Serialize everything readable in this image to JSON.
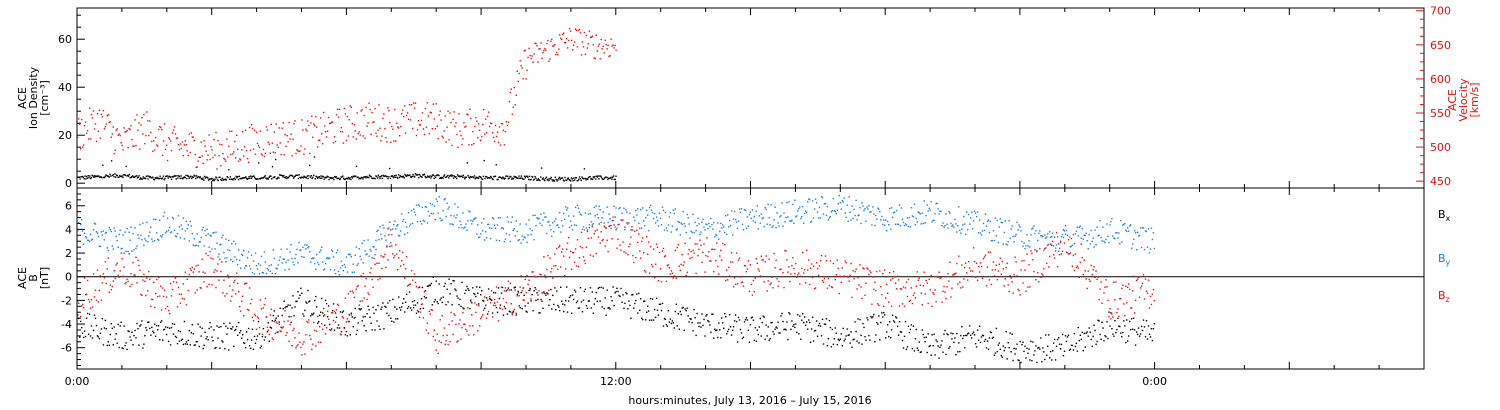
{
  "footer": {
    "xlabel": "hours:minutes, July 13, 2016 – July 15, 2016"
  },
  "colors": {
    "black": "#000000",
    "blue": "#1f7fd0",
    "red": "#e01010",
    "axis": "#000000"
  },
  "chart_data": [
    {
      "type": "scatter",
      "panel": "top",
      "title": "",
      "x_range_hours": [
        0,
        30
      ],
      "x_tick_labels": [
        {
          "hour": 0,
          "label": "0:00"
        },
        {
          "hour": 12,
          "label": "12:00"
        },
        {
          "hour": 24,
          "label": "0:00"
        }
      ],
      "left_axis": {
        "label_lines": [
          "ACE",
          "Ion Density",
          "[cm⁻³]"
        ],
        "ylim": [
          -2,
          73
        ],
        "ticks": [
          0,
          20,
          40,
          60
        ],
        "color": "#000000"
      },
      "right_axis": {
        "label_lines": [
          "ACE",
          "Velocity",
          "[km/s]"
        ],
        "ylim": [
          440,
          704
        ],
        "ticks": [
          450,
          500,
          550,
          600,
          650,
          700
        ],
        "color": "#e01010"
      },
      "series": [
        {
          "axis": "left",
          "color": "#000000",
          "x": [
            0,
            0.5,
            1,
            1.5,
            2,
            2.5,
            3,
            3.5,
            4,
            4.5,
            5,
            5.5,
            6,
            6.5,
            7,
            7.5,
            8,
            8.5,
            9,
            9.5,
            10,
            10.5,
            11,
            11.5,
            12
          ],
          "y": [
            2.5,
            3,
            3.5,
            2.5,
            2.5,
            3,
            2,
            2.5,
            2.5,
            3,
            3,
            2.5,
            2.5,
            3,
            3,
            3.5,
            3,
            3,
            2.5,
            2.5,
            2.5,
            2,
            2,
            2.5,
            2.5
          ]
        },
        {
          "axis": "right",
          "color": "#e01010",
          "x": [
            0,
            0.5,
            1,
            1.5,
            2,
            2.5,
            3,
            3.5,
            4,
            4.5,
            5,
            5.5,
            6,
            6.5,
            7,
            7.5,
            8,
            8.5,
            9,
            9.5,
            10,
            10.5,
            11,
            11.5,
            12
          ],
          "y": [
            520,
            540,
            505,
            530,
            505,
            500,
            495,
            500,
            510,
            515,
            515,
            525,
            535,
            540,
            535,
            540,
            540,
            525,
            535,
            530,
            630,
            645,
            660,
            650,
            650
          ]
        }
      ]
    },
    {
      "type": "scatter",
      "panel": "bottom",
      "title": "",
      "x_range_hours": [
        0,
        30
      ],
      "left_axis": {
        "label_lines": [
          "ACE",
          "B",
          "[nT]"
        ],
        "ylim": [
          -7.8,
          7.5
        ],
        "ticks": [
          -6,
          -4,
          -2,
          0,
          2,
          4,
          6
        ]
      },
      "zero_line": true,
      "series": [
        {
          "name": "Bx",
          "color": "#000000",
          "x": [
            0,
            1,
            2,
            3,
            4,
            5,
            6,
            7,
            8,
            9,
            10,
            11,
            12,
            13,
            14,
            15,
            16,
            17,
            18,
            19,
            20,
            21,
            22,
            23,
            24
          ],
          "y": [
            -4,
            -5,
            -4.5,
            -5,
            -5,
            -2,
            -4,
            -3,
            -1,
            -2,
            -2,
            -2,
            -2,
            -3,
            -4,
            -4.5,
            -4,
            -5,
            -4,
            -6,
            -5,
            -6,
            -6,
            -4,
            -5
          ]
        },
        {
          "name": "By",
          "color": "#1f7fd0",
          "x": [
            0,
            1,
            2,
            3,
            4,
            5,
            6,
            7,
            8,
            9,
            10,
            11,
            12,
            13,
            14,
            15,
            16,
            17,
            18,
            19,
            20,
            21,
            22,
            23,
            24
          ],
          "y": [
            4,
            3,
            4.5,
            3,
            1,
            2,
            1,
            4,
            6,
            4,
            4,
            5,
            5,
            5,
            4,
            5,
            5.5,
            6,
            5,
            5.5,
            4.5,
            3.5,
            3,
            4,
            3
          ]
        },
        {
          "name": "Bz",
          "color": "#e01010",
          "x": [
            0,
            1,
            2,
            3,
            4,
            5,
            6,
            7,
            8,
            9,
            10,
            11,
            12,
            13,
            14,
            15,
            16,
            17,
            18,
            19,
            20,
            21,
            22,
            23,
            24
          ],
          "y": [
            -2,
            1,
            -2,
            1,
            -3,
            -5,
            -3,
            3,
            -5,
            -3,
            -1,
            2,
            4,
            1,
            2,
            0,
            1,
            0,
            -1,
            -1,
            1,
            0,
            3,
            -2,
            -1
          ]
        }
      ]
    }
  ]
}
